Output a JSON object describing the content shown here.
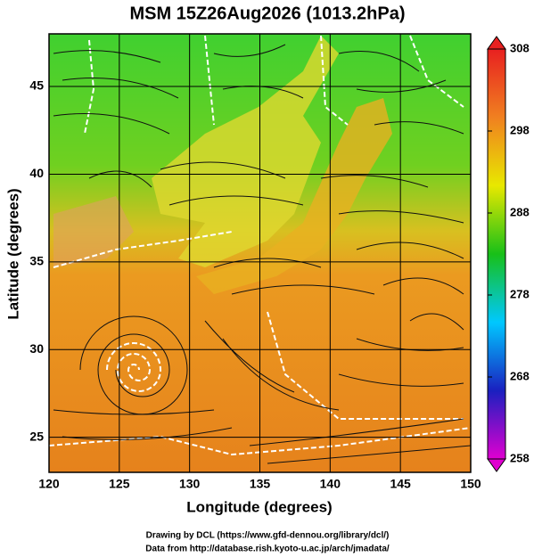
{
  "title": "MSM 15Z26Aug2026 (1013.2hPa)",
  "x_axis": {
    "label": "Longitude (degrees)",
    "lim": [
      120,
      150
    ],
    "ticks": [
      120,
      125,
      130,
      135,
      140,
      145,
      150
    ]
  },
  "y_axis": {
    "label": "Latitude  (degrees)",
    "lim": [
      23,
      48
    ],
    "ticks": [
      25,
      30,
      35,
      40,
      45
    ]
  },
  "colorbar": {
    "lim": [
      258,
      308
    ],
    "ticks": [
      258,
      268,
      278,
      288,
      298,
      308
    ],
    "colors": [
      "#e000d0",
      "#1a20c0",
      "#00c8ff",
      "#18c018",
      "#e8e800",
      "#f08020",
      "#e82020"
    ]
  },
  "credits": [
    "Drawing by DCL (https://www.gfd-dennou.org/library/dcl/)",
    "Data from http://database.rish.kyoto-u.ac.jp/arch/jmadata/"
  ]
}
